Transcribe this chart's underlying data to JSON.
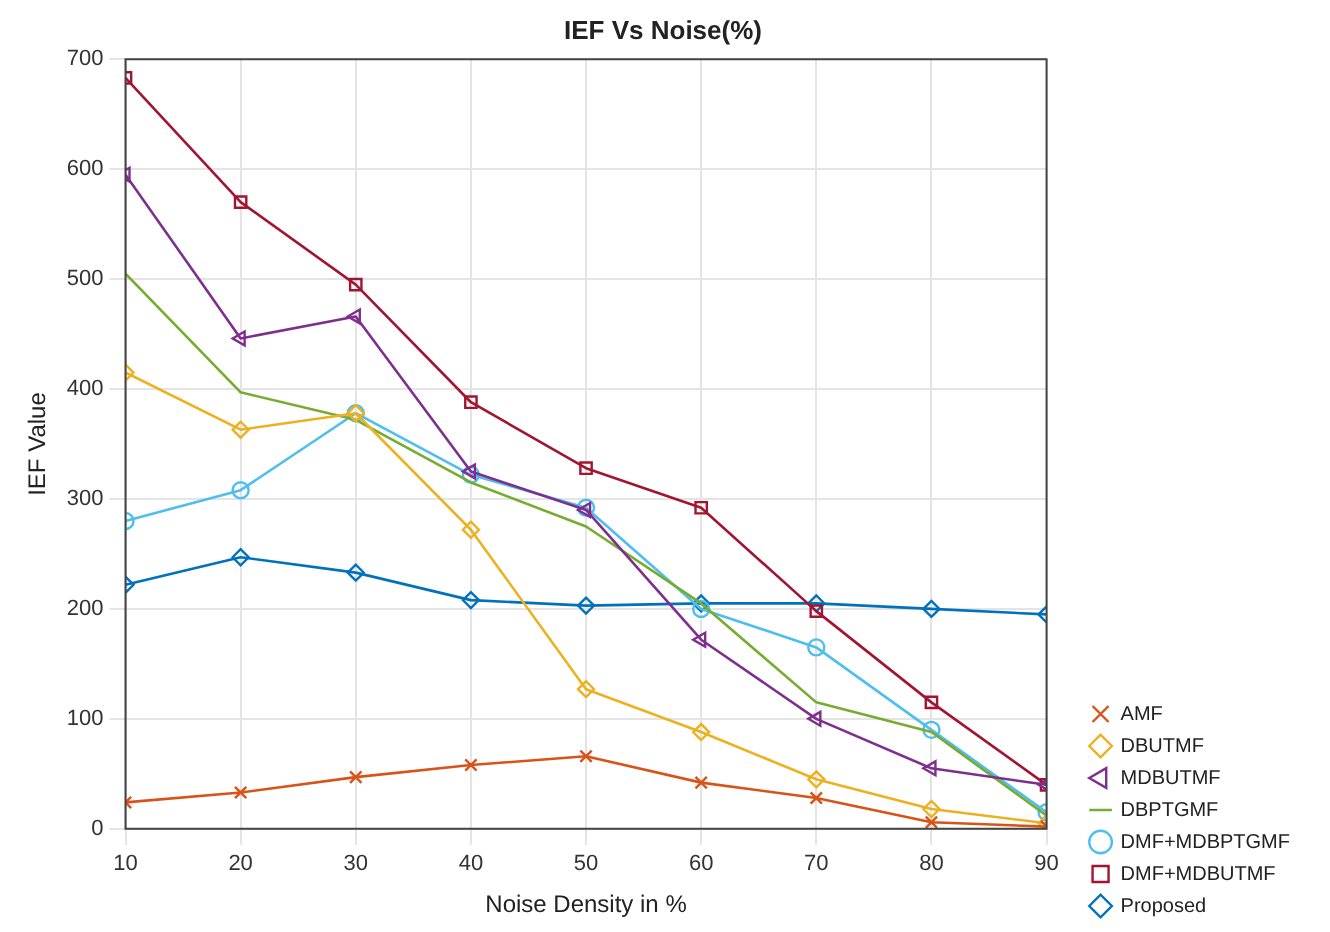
{
  "chart_data": {
    "type": "line",
    "title": "IEF Vs Noise(%)",
    "xlabel": "Noise Density in %",
    "ylabel": "IEF Value",
    "x": [
      10,
      20,
      30,
      40,
      50,
      60,
      70,
      80,
      90
    ],
    "xlim": [
      10,
      90
    ],
    "xticks": [
      10,
      20,
      30,
      40,
      50,
      60,
      70,
      80,
      90
    ],
    "ylim": [
      0,
      700
    ],
    "yticks": [
      0,
      100,
      200,
      300,
      400,
      500,
      600,
      700
    ],
    "grid": true,
    "legend": "bottom right",
    "line_style": "solid",
    "series": [
      {
        "name": "AMF",
        "color": "#d95319",
        "marker": "cross",
        "values": [
          24,
          33,
          47,
          58,
          66,
          42,
          28,
          6,
          2
        ]
      },
      {
        "name": "DBUTMF",
        "color": "#edb120",
        "marker": "diamond",
        "values": [
          415,
          363,
          378,
          272,
          127,
          88,
          45,
          18,
          5
        ]
      },
      {
        "name": "MDBUTMF",
        "color": "#7e2f8e",
        "marker": "triangle",
        "values": [
          595,
          446,
          466,
          325,
          290,
          172,
          100,
          55,
          40
        ]
      },
      {
        "name": "DBPTGMF",
        "color": "#77ac30",
        "marker": "none",
        "values": [
          505,
          397,
          372,
          315,
          275,
          205,
          115,
          88,
          12
        ]
      },
      {
        "name": "DMF+MDBPTGMF",
        "color": "#4dbeee",
        "marker": "circle",
        "values": [
          280,
          308,
          378,
          322,
          292,
          200,
          165,
          90,
          15
        ]
      },
      {
        "name": "DMF+MDBUTMF",
        "color": "#a2142f",
        "marker": "square",
        "values": [
          683,
          570,
          495,
          388,
          328,
          292,
          198,
          115,
          40
        ]
      },
      {
        "name": "Proposed",
        "color": "#0072bd",
        "marker": "diamond",
        "values": [
          222,
          247,
          233,
          208,
          203,
          205,
          205,
          200,
          195
        ]
      }
    ]
  }
}
